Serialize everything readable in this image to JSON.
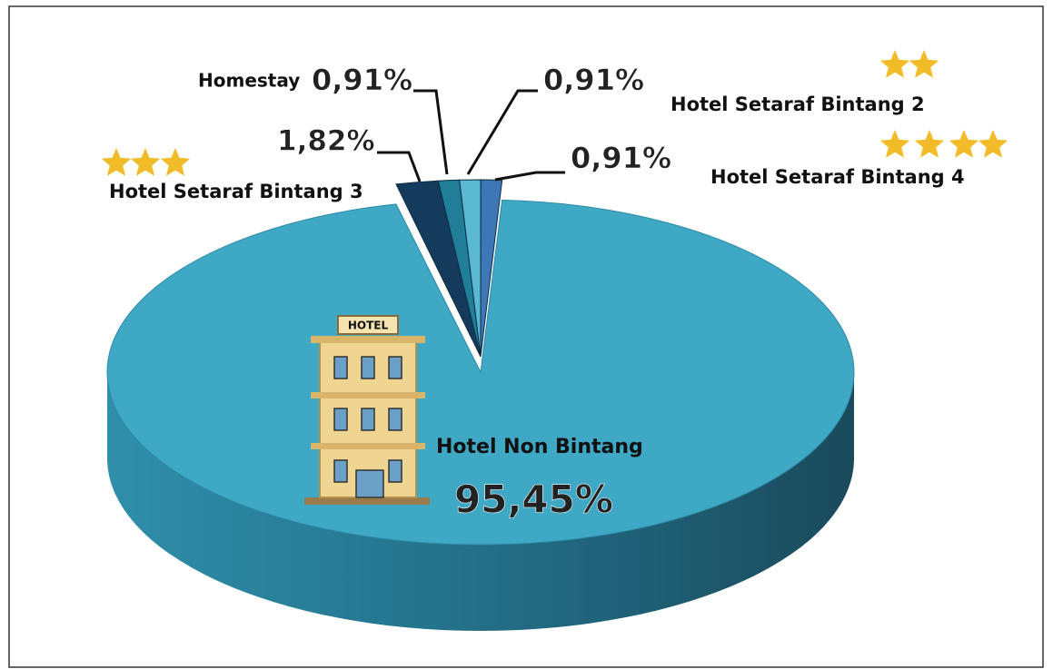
{
  "chart_data": {
    "type": "pie",
    "categories": [
      "Hotel Non Bintang",
      "Hotel Setaraf Bintang 3",
      "Homestay",
      "Hotel Setaraf Bintang 2",
      "Hotel Setaraf Bintang 4"
    ],
    "values": [
      95.45,
      1.82,
      0.91,
      0.91,
      0.91
    ],
    "value_labels": [
      "95,45%",
      "1,82%",
      "0,91%",
      "0,91%",
      "0,91%"
    ],
    "colors": [
      "#3fa8c4",
      "#143b5c",
      "#1f7e98",
      "#58b9d0",
      "#3d77b6"
    ]
  }
}
